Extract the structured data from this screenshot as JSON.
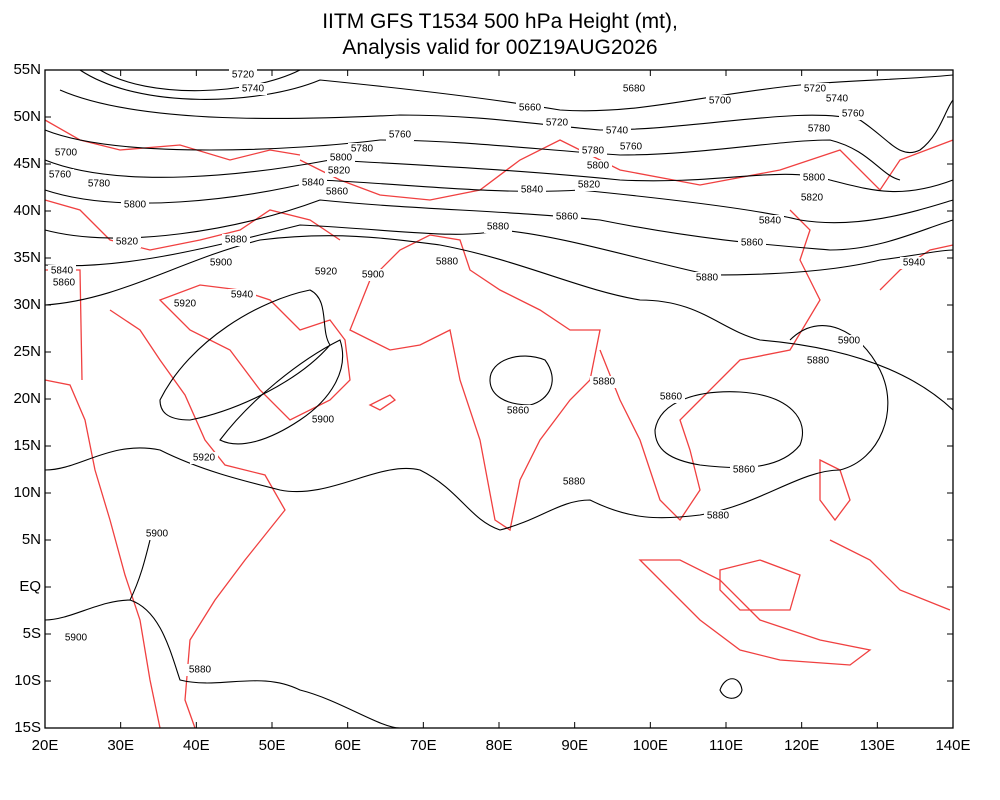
{
  "map": {
    "title_lines": [
      "IITM GFS T1534 500 hPa Height (mt),",
      "Analysis valid for 00Z19AUG2026"
    ],
    "xlim": [
      20,
      140
    ],
    "ylim": [
      -15,
      55
    ],
    "xticks": [
      {
        "value": 20,
        "label": "20E"
      },
      {
        "value": 30,
        "label": "30E"
      },
      {
        "value": 40,
        "label": "40E"
      },
      {
        "value": 50,
        "label": "50E"
      },
      {
        "value": 60,
        "label": "60E"
      },
      {
        "value": 70,
        "label": "70E"
      },
      {
        "value": 80,
        "label": "80E"
      },
      {
        "value": 90,
        "label": "90E"
      },
      {
        "value": 100,
        "label": "100E"
      },
      {
        "value": 110,
        "label": "110E"
      },
      {
        "value": 120,
        "label": "120E"
      },
      {
        "value": 130,
        "label": "130E"
      },
      {
        "value": 140,
        "label": "140E"
      }
    ],
    "yticks": [
      {
        "value": 55,
        "label": "55N"
      },
      {
        "value": 50,
        "label": "50N"
      },
      {
        "value": 45,
        "label": "45N"
      },
      {
        "value": 40,
        "label": "40N"
      },
      {
        "value": 35,
        "label": "35N"
      },
      {
        "value": 30,
        "label": "30N"
      },
      {
        "value": 25,
        "label": "25N"
      },
      {
        "value": 20,
        "label": "20N"
      },
      {
        "value": 15,
        "label": "15N"
      },
      {
        "value": 10,
        "label": "10N"
      },
      {
        "value": 5,
        "label": "5N"
      },
      {
        "value": 0,
        "label": "EQ"
      },
      {
        "value": -5,
        "label": "5S"
      },
      {
        "value": -10,
        "label": "10S"
      },
      {
        "value": -15,
        "label": "15S"
      }
    ],
    "contour_labels": [
      5720,
      5740,
      5660,
      5680,
      5700,
      5720,
      5740,
      5760,
      5780,
      5720,
      5740,
      5760,
      5780,
      5800,
      5820,
      5840,
      5860,
      5880,
      5760,
      5780,
      5800,
      5820,
      5840,
      5860,
      5700,
      5760,
      5780,
      5800,
      5820,
      5840,
      5860,
      5880,
      5900,
      5920,
      5900,
      5880,
      5940,
      5920,
      5880,
      5860,
      5840,
      5820,
      5800,
      5940,
      5900,
      5880,
      5880,
      5860,
      5860,
      5900,
      5920,
      5860,
      5880,
      5880,
      5900,
      5900,
      5880
    ]
  }
}
